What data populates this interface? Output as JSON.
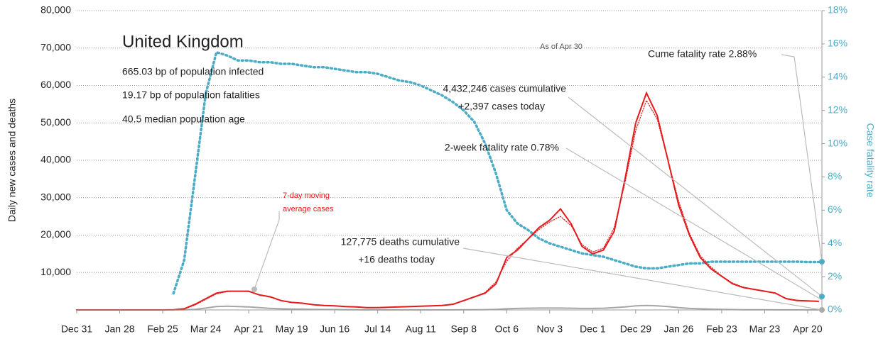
{
  "chart_data": {
    "type": "line",
    "title": "United Kingdom",
    "subtitle": [
      "665.03 bp of population infected",
      "19.17 bp of population fatalities",
      "40.5 median population age"
    ],
    "annotations": [
      "As of Apr 30",
      "Cume fatality rate 2.88%",
      "4,432,246 cases cumulative",
      "+2,397 cases today",
      "2-week fatality rate 0.78%",
      "7-day moving",
      "average cases",
      "127,775 deaths cumulative",
      "+16 deaths today"
    ],
    "y_label": "Daily new cases and deaths",
    "y2_label": "Case fatality rate",
    "categories": [
      "Dec 31",
      null,
      null,
      null,
      "Jan 28",
      null,
      null,
      null,
      "Feb 25",
      null,
      null,
      null,
      "Mar 24",
      null,
      null,
      null,
      "Apr 21",
      null,
      null,
      null,
      "May 19",
      null,
      null,
      null,
      "Jun 16",
      null,
      null,
      null,
      "Jul 14",
      null,
      null,
      null,
      "Aug 11",
      null,
      null,
      null,
      "Sep 8",
      null,
      null,
      null,
      "Oct 6",
      null,
      null,
      null,
      "Nov 3",
      null,
      null,
      null,
      "Dec 1",
      null,
      null,
      null,
      "Dec 29",
      null,
      null,
      null,
      "Jan 26",
      null,
      null,
      null,
      "Feb 23",
      null,
      null,
      null,
      "Mar 23",
      null,
      null,
      null,
      "Apr 20",
      null
    ],
    "series": [
      {
        "name": "Daily new cases",
        "color": "#e41a1c",
        "style": "solid",
        "values": [
          0,
          0,
          0,
          0,
          0,
          0,
          0,
          0,
          0,
          50,
          300,
          1500,
          3000,
          4500,
          5000,
          5000,
          5000,
          4000,
          3500,
          2500,
          2000,
          1800,
          1400,
          1200,
          1100,
          900,
          800,
          600,
          600,
          700,
          800,
          900,
          1000,
          1100,
          1200,
          1500,
          2500,
          3500,
          4500,
          7000,
          14000,
          16000,
          19000,
          22000,
          24000,
          27000,
          23000,
          17000,
          15000,
          16000,
          21000,
          35000,
          50000,
          58000,
          52000,
          40000,
          28000,
          20000,
          14000,
          11000,
          9000,
          7000,
          6000,
          5500,
          5000,
          4500,
          3000,
          2500,
          2400,
          2300
        ]
      },
      {
        "name": "7-day moving average cases",
        "color": "#e41a1c",
        "style": "dotted",
        "values": [
          0,
          0,
          0,
          0,
          0,
          0,
          0,
          0,
          0,
          40,
          250,
          1300,
          2800,
          4300,
          4900,
          5000,
          4900,
          4100,
          3400,
          2600,
          2000,
          1750,
          1450,
          1250,
          1100,
          950,
          800,
          650,
          620,
          700,
          800,
          900,
          1000,
          1100,
          1250,
          1600,
          2400,
          3500,
          4700,
          7500,
          13000,
          16500,
          19000,
          21500,
          23500,
          25000,
          22500,
          17500,
          15500,
          16500,
          22000,
          34000,
          48000,
          56000,
          51000,
          40000,
          29000,
          20500,
          14500,
          11500,
          9000,
          7200,
          6100,
          5500,
          5000,
          4400,
          3100,
          2600,
          2400,
          2300
        ]
      },
      {
        "name": "Daily new deaths",
        "color": "#a6a6a6",
        "style": "solid",
        "values": [
          0,
          0,
          0,
          0,
          0,
          0,
          0,
          0,
          0,
          0,
          20,
          150,
          500,
          900,
          1000,
          900,
          800,
          600,
          400,
          300,
          250,
          200,
          150,
          120,
          100,
          60,
          40,
          20,
          15,
          10,
          10,
          10,
          10,
          10,
          15,
          20,
          40,
          60,
          80,
          150,
          300,
          400,
          450,
          500,
          500,
          500,
          450,
          400,
          400,
          450,
          600,
          800,
          1100,
          1200,
          1100,
          900,
          600,
          400,
          300,
          200,
          150,
          100,
          60,
          40,
          30,
          25,
          20,
          20,
          20,
          16
        ]
      },
      {
        "name": "Case fatality rate",
        "color": "#4bacc6",
        "style": "dotted",
        "axis": "y2",
        "values": [
          null,
          null,
          null,
          null,
          null,
          null,
          null,
          null,
          null,
          1,
          3,
          8,
          13,
          15.5,
          15.3,
          15,
          15,
          14.9,
          14.9,
          14.8,
          14.8,
          14.7,
          14.6,
          14.6,
          14.5,
          14.4,
          14.3,
          14.3,
          14.2,
          14.0,
          13.8,
          13.7,
          13.5,
          13.2,
          12.9,
          12.5,
          12,
          11.3,
          10,
          8.2,
          6,
          5.2,
          4.8,
          4.3,
          4,
          3.8,
          3.6,
          3.4,
          3.3,
          3.2,
          3,
          2.8,
          2.6,
          2.5,
          2.5,
          2.6,
          2.7,
          2.8,
          2.8,
          2.9,
          2.9,
          2.9,
          2.9,
          2.9,
          2.9,
          2.9,
          2.9,
          2.9,
          2.88,
          2.88
        ]
      }
    ],
    "ylim": [
      0,
      80000
    ],
    "yticks": [
      {
        "value": 10000,
        "label": "10,000"
      },
      {
        "value": 20000,
        "label": "20,000"
      },
      {
        "value": 30000,
        "label": "30,000"
      },
      {
        "value": 40000,
        "label": "40,000"
      },
      {
        "value": 50000,
        "label": "50,000"
      },
      {
        "value": 60000,
        "label": "60,000"
      },
      {
        "value": 70000,
        "label": "70,000"
      },
      {
        "value": 80000,
        "label": "80,000"
      }
    ],
    "y2lim": [
      0,
      18
    ],
    "y2ticks": [
      {
        "value": 0,
        "label": "0%"
      },
      {
        "value": 2,
        "label": "2%"
      },
      {
        "value": 4,
        "label": "4%"
      },
      {
        "value": 6,
        "label": "6%"
      },
      {
        "value": 8,
        "label": "8%"
      },
      {
        "value": 10,
        "label": "10%"
      },
      {
        "value": 12,
        "label": "12%"
      },
      {
        "value": 14,
        "label": "14%"
      },
      {
        "value": 16,
        "label": "16%"
      },
      {
        "value": 18,
        "label": "18%"
      }
    ],
    "grid": true
  }
}
